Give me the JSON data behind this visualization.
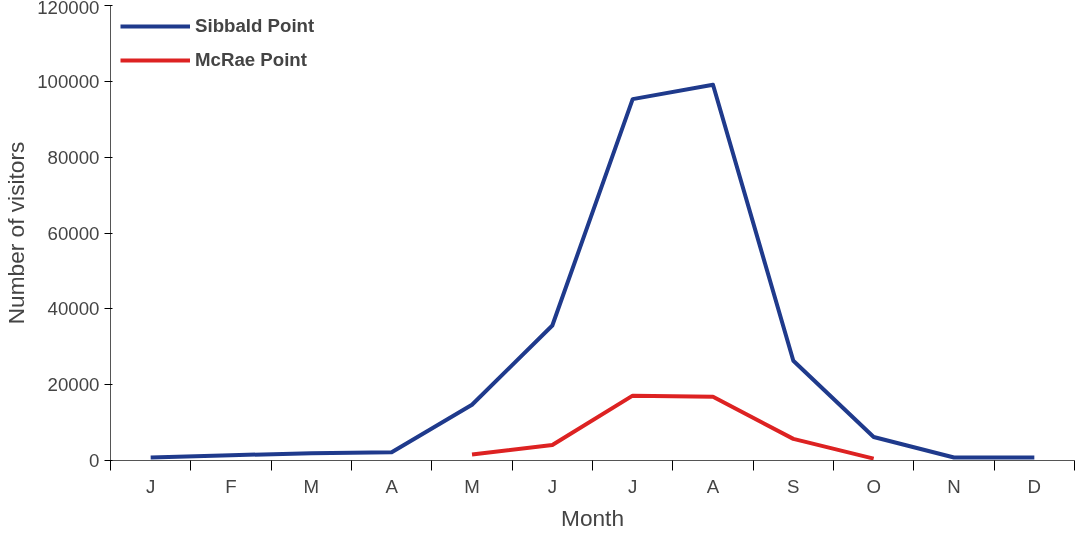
{
  "chart_data": {
    "type": "line",
    "xlabel": "Month",
    "ylabel": "Number of visitors",
    "categories": [
      "J",
      "F",
      "M",
      "A",
      "M",
      "J",
      "J",
      "A",
      "S",
      "O",
      "N",
      "D"
    ],
    "series": [
      {
        "name": "Sibbald Point",
        "color": "#1f3a8c",
        "values": [
          800,
          1400,
          1900,
          2200,
          14700,
          35600,
          95300,
          99100,
          26300,
          6200,
          800,
          800
        ]
      },
      {
        "name": "McRae Point",
        "color": "#dd2222",
        "values": [
          null,
          null,
          null,
          null,
          1600,
          4100,
          17100,
          16800,
          5700,
          500,
          null,
          null
        ]
      }
    ],
    "ylim": [
      0,
      120000
    ],
    "yticks": [
      0,
      20000,
      40000,
      60000,
      80000,
      100000,
      120000
    ],
    "grid": false,
    "legend": "top left",
    "marker": "none",
    "line_style": "solid"
  }
}
